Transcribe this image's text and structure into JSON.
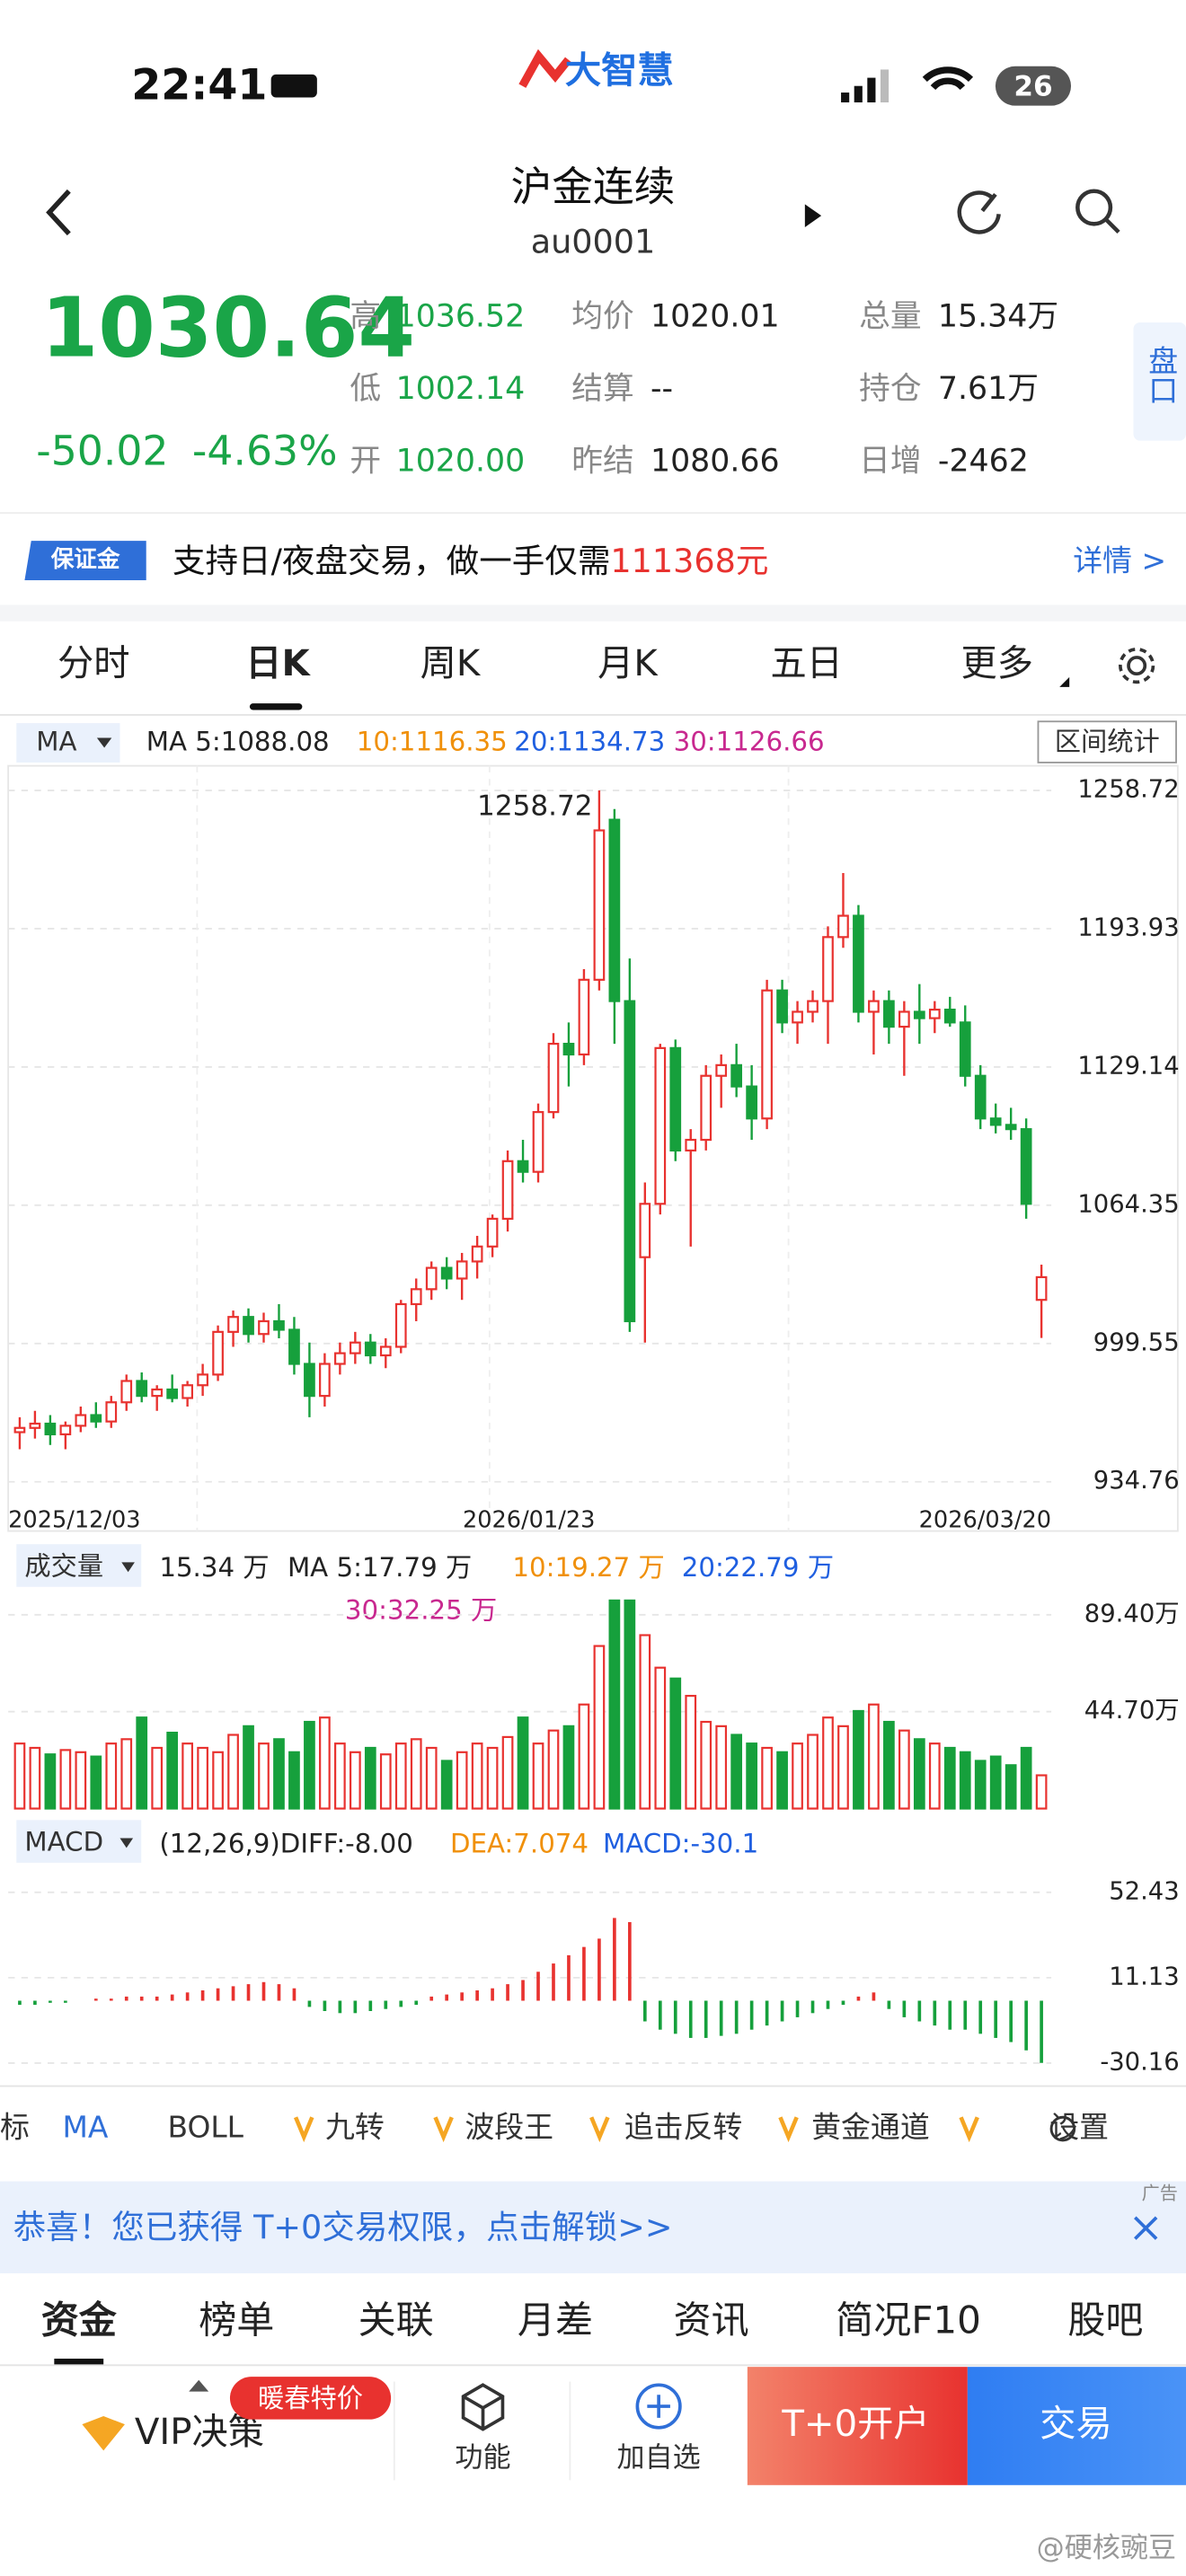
{
  "status": {
    "time": "22:41",
    "battery": "26"
  },
  "logo": "大智慧",
  "header": {
    "title": "沪金连续",
    "code": "au0001"
  },
  "quote": {
    "price": "1030.64",
    "change": "-50.02",
    "percent": "-4.63%",
    "stats": [
      [
        "高",
        "1036.52"
      ],
      [
        "低",
        "1002.14"
      ],
      [
        "开",
        "1020.00"
      ],
      [
        "均价",
        "1020.01"
      ],
      [
        "结算",
        "--"
      ],
      [
        "昨结",
        "1080.66"
      ],
      [
        "总量",
        "15.34万"
      ],
      [
        "持仓",
        "7.61万"
      ],
      [
        "日增",
        "-2462"
      ]
    ],
    "side": "盘口"
  },
  "banner": {
    "tag": "保证金",
    "text": "支持日/夜盘交易，做一手仅需",
    "amount": "111368元",
    "link": "详情 >"
  },
  "tabs": [
    "分时",
    "日K",
    "周K",
    "月K",
    "五日",
    "更多"
  ],
  "ma_legend": {
    "selector": "MA",
    "ma5": "MA 5:1088.08",
    "ma10": "10:1116.35",
    "ma20": "20:1134.73",
    "ma30": "30:1126.66",
    "button": "区间统计"
  },
  "volume_legend": {
    "selector": "成交量",
    "current": "15.34 万",
    "ma5": "MA 5:17.79 万",
    "ma10": "10:19.27 万",
    "ma20": "20:22.79 万",
    "ma30": "30:32.25 万"
  },
  "macd_legend": {
    "selector": "MACD",
    "diff": "(12,26,9)DIFF:-8.00",
    "dea": "DEA:7.074",
    "macd": "MACD:-30.1"
  },
  "chart_data": {
    "type": "candlestick",
    "dates": [
      "2025/12/03",
      "2026/01/23",
      "2026/03/20"
    ],
    "peak_label": "1258.72",
    "ylim": [
      934.76,
      1258.72
    ],
    "yticks": [
      1258.72,
      1193.93,
      1129.14,
      1064.35,
      999.55,
      934.76
    ],
    "up_color": "#e8322f",
    "down_color": "#16a03c",
    "candles": [
      [
        958,
        965,
        950,
        960
      ],
      [
        960,
        968,
        955,
        962
      ],
      [
        962,
        966,
        952,
        957
      ],
      [
        957,
        963,
        950,
        961
      ],
      [
        961,
        970,
        958,
        966
      ],
      [
        966,
        972,
        960,
        963
      ],
      [
        963,
        975,
        960,
        972
      ],
      [
        972,
        985,
        968,
        982
      ],
      [
        982,
        986,
        972,
        975
      ],
      [
        975,
        980,
        968,
        978
      ],
      [
        978,
        985,
        972,
        974
      ],
      [
        974,
        982,
        970,
        980
      ],
      [
        980,
        990,
        975,
        985
      ],
      [
        985,
        1008,
        982,
        1005
      ],
      [
        1005,
        1015,
        998,
        1012
      ],
      [
        1012,
        1016,
        1000,
        1004
      ],
      [
        1004,
        1014,
        1000,
        1010
      ],
      [
        1010,
        1018,
        1002,
        1006
      ],
      [
        1006,
        1012,
        985,
        990
      ],
      [
        990,
        1000,
        965,
        975
      ],
      [
        975,
        995,
        970,
        990
      ],
      [
        990,
        1000,
        985,
        995
      ],
      [
        995,
        1005,
        990,
        1000
      ],
      [
        1000,
        1004,
        990,
        994
      ],
      [
        994,
        1002,
        988,
        998
      ],
      [
        998,
        1020,
        995,
        1018
      ],
      [
        1018,
        1030,
        1010,
        1025
      ],
      [
        1025,
        1038,
        1020,
        1035
      ],
      [
        1035,
        1040,
        1025,
        1030
      ],
      [
        1030,
        1042,
        1020,
        1038
      ],
      [
        1038,
        1050,
        1030,
        1045
      ],
      [
        1045,
        1060,
        1040,
        1058
      ],
      [
        1058,
        1090,
        1052,
        1085
      ],
      [
        1085,
        1095,
        1075,
        1080
      ],
      [
        1080,
        1112,
        1075,
        1108
      ],
      [
        1108,
        1145,
        1105,
        1140
      ],
      [
        1140,
        1150,
        1120,
        1135
      ],
      [
        1135,
        1175,
        1130,
        1170
      ],
      [
        1170,
        1258.72,
        1165,
        1240
      ],
      [
        1245,
        1250,
        1140,
        1160
      ],
      [
        1160,
        1180,
        1005,
        1010
      ],
      [
        1040,
        1075,
        1000,
        1065
      ],
      [
        1065,
        1140,
        1060,
        1138
      ],
      [
        1138,
        1142,
        1085,
        1090
      ],
      [
        1090,
        1100,
        1045,
        1095
      ],
      [
        1095,
        1130,
        1090,
        1125
      ],
      [
        1125,
        1135,
        1110,
        1130
      ],
      [
        1130,
        1140,
        1115,
        1120
      ],
      [
        1120,
        1130,
        1095,
        1105
      ],
      [
        1105,
        1170,
        1100,
        1165
      ],
      [
        1165,
        1170,
        1145,
        1150
      ],
      [
        1150,
        1160,
        1140,
        1155
      ],
      [
        1155,
        1165,
        1150,
        1160
      ],
      [
        1160,
        1195,
        1140,
        1190
      ],
      [
        1190,
        1220,
        1185,
        1200
      ],
      [
        1200,
        1205,
        1150,
        1155
      ],
      [
        1155,
        1165,
        1135,
        1160
      ],
      [
        1160,
        1165,
        1140,
        1148
      ],
      [
        1148,
        1160,
        1125,
        1155
      ],
      [
        1155,
        1168,
        1140,
        1152
      ],
      [
        1152,
        1160,
        1145,
        1156
      ],
      [
        1156,
        1162,
        1148,
        1150
      ],
      [
        1150,
        1158,
        1120,
        1125
      ],
      [
        1125,
        1130,
        1100,
        1105
      ],
      [
        1105,
        1112,
        1098,
        1102
      ],
      [
        1102,
        1110,
        1095,
        1100
      ],
      [
        1100,
        1105,
        1058,
        1065
      ],
      [
        1020,
        1036.52,
        1002.14,
        1030.64
      ]
    ],
    "volume": [
      30,
      28,
      25,
      27,
      26,
      24,
      30,
      32,
      42,
      28,
      35,
      30,
      28,
      26,
      34,
      38,
      30,
      32,
      26,
      40,
      42,
      30,
      26,
      28,
      25,
      30,
      32,
      28,
      22,
      26,
      30,
      28,
      33,
      42,
      30,
      36,
      38,
      48,
      75,
      96,
      96,
      80,
      65,
      60,
      52,
      40,
      38,
      34,
      30,
      28,
      26,
      30,
      34,
      42,
      38,
      45,
      48,
      40,
      36,
      32,
      30,
      28,
      26,
      22,
      24,
      20,
      28,
      15.34
    ],
    "volume_ylim": [
      0,
      89.4
    ],
    "volume_yticks": [
      {
        "value": 89.4,
        "label": "89.40万"
      },
      {
        "value": 44.7,
        "label": "44.70万"
      }
    ],
    "macd": [
      -2,
      -2,
      -1,
      -1,
      0,
      1,
      1,
      2,
      2,
      2,
      3,
      4,
      5,
      6,
      7,
      8,
      9,
      8,
      6,
      -3,
      -5,
      -6,
      -6,
      -5,
      -4,
      -3,
      -2,
      2,
      3,
      4,
      5,
      6,
      8,
      10,
      14,
      18,
      22,
      26,
      30,
      40,
      38,
      -10,
      -14,
      -16,
      -18,
      -18,
      -17,
      -16,
      -14,
      -12,
      -10,
      -8,
      -6,
      -4,
      -2,
      2,
      4,
      -4,
      -8,
      -10,
      -12,
      -14,
      -14,
      -16,
      -18,
      -20,
      -24,
      -30.1
    ],
    "macd_ylim": [
      -30.16,
      52.43
    ],
    "macd_yticks": [
      52.43,
      11.13,
      -30.16
    ]
  },
  "indicators": [
    "标",
    "MA",
    "BOLL",
    "九转",
    "波段王",
    "追击反转",
    "黄金通道",
    "设置"
  ],
  "ad": {
    "text": "恭喜！您已获得 T+0交易权限，点击解锁>>",
    "tag": "广告"
  },
  "bottom_tabs": [
    "资金",
    "榜单",
    "关联",
    "月差",
    "资讯",
    "简况F10",
    "股吧"
  ],
  "nav": {
    "vip": "VIP决策",
    "badge": "暖春特价",
    "function": "功能",
    "watch": "加自选",
    "open": "T+0开户",
    "trade": "交易"
  },
  "watermark": "@硬核豌豆"
}
